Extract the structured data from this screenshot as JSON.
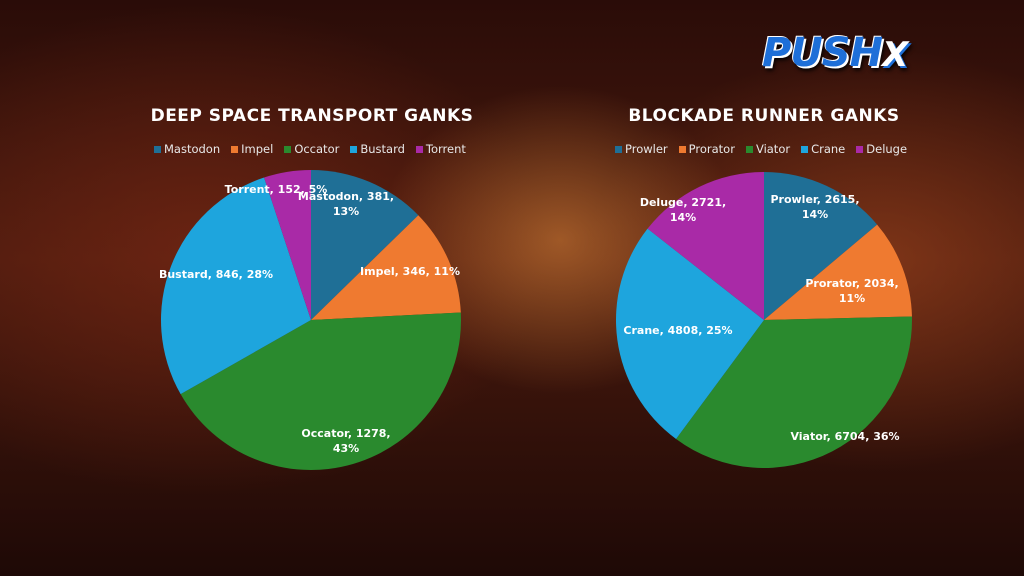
{
  "logo": {
    "text": "PUSHX"
  },
  "colors": {
    "blue_dark": "#1f6f96",
    "orange": "#ef7a30",
    "green": "#2a8a2e",
    "blue_light": "#1ea5dd",
    "purple": "#a92aa7"
  },
  "chart_data": [
    {
      "type": "pie",
      "title": "DEEP SPACE TRANSPORT GANKS",
      "legend_placement": "top",
      "slices": [
        {
          "name": "Mastodon",
          "value": 381,
          "percent": "13%",
          "label": "Mastodon, 381, 13%",
          "color": "#1f6f96"
        },
        {
          "name": "Impel",
          "value": 346,
          "percent": "11%",
          "label": "Impel, 346, 11%",
          "color": "#ef7a30"
        },
        {
          "name": "Occator",
          "value": 1278,
          "percent": "43%",
          "label": "Occator, 1278, 43%",
          "color": "#2a8a2e"
        },
        {
          "name": "Bustard",
          "value": 846,
          "percent": "28%",
          "label": "Bustard, 846, 28%",
          "color": "#1ea5dd"
        },
        {
          "name": "Torrent",
          "value": 152,
          "percent": "5%",
          "label": "Torrent, 152, 5%",
          "color": "#a92aa7"
        }
      ]
    },
    {
      "type": "pie",
      "title": "BLOCKADE RUNNER GANKS",
      "legend_placement": "top",
      "slices": [
        {
          "name": "Prowler",
          "value": 2615,
          "percent": "14%",
          "label": "Prowler, 2615, 14%",
          "color": "#1f6f96"
        },
        {
          "name": "Prorator",
          "value": 2034,
          "percent": "11%",
          "label": "Prorator, 2034, 11%",
          "color": "#ef7a30"
        },
        {
          "name": "Viator",
          "value": 6704,
          "percent": "36%",
          "label": "Viator, 6704, 36%",
          "color": "#2a8a2e"
        },
        {
          "name": "Crane",
          "value": 4808,
          "percent": "25%",
          "label": "Crane, 4808, 25%",
          "color": "#1ea5dd"
        },
        {
          "name": "Deluge",
          "value": 2721,
          "percent": "14%",
          "label": "Deluge, 2721, 14%",
          "color": "#a92aa7"
        }
      ]
    }
  ]
}
